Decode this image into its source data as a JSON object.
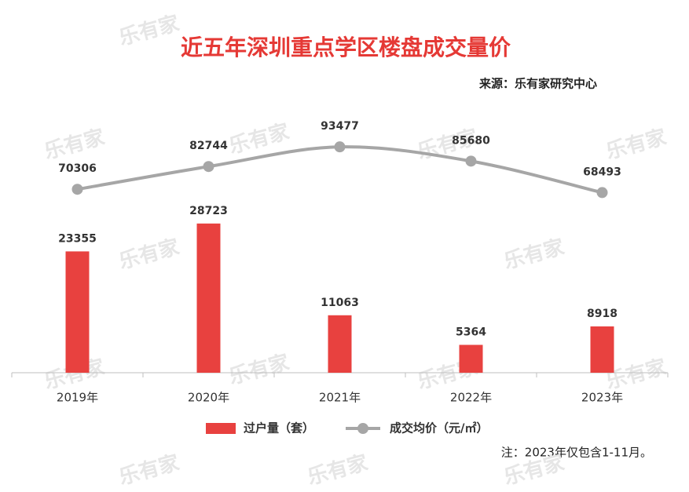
{
  "chart_data": {
    "type": "combo",
    "title": "近五年深圳重点学区楼盘成交量价",
    "source": "来源：乐有家研究中心",
    "note": "注：2023年仅包含1-11月。",
    "watermark": "乐有家",
    "categories": [
      "2019年",
      "2020年",
      "2021年",
      "2022年",
      "2023年"
    ],
    "ylim": [
      0,
      50000
    ],
    "y2lim": [
      -30000,
      112000
    ],
    "legend": "bottom",
    "series": [
      {
        "name": "过户量（套）",
        "type": "bar",
        "color": "#e8413f",
        "values": [
          23355,
          28723,
          11063,
          5364,
          8918
        ]
      },
      {
        "name": "成交均价（元/㎡）",
        "type": "line",
        "axis": "y2",
        "color": "#a6a6a6",
        "values": [
          70306,
          82744,
          93477,
          85680,
          68493
        ]
      }
    ]
  }
}
